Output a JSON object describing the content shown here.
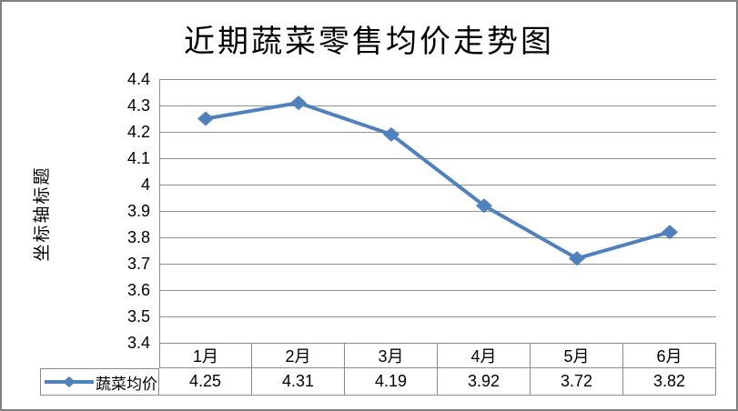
{
  "window": {
    "background": "#ffffff",
    "outer_border_color": "#808080"
  },
  "chart_data": {
    "type": "line",
    "title": "近期蔬菜零售均价走势图",
    "y_axis_title": "坐标轴标题",
    "categories": [
      "1月",
      "2月",
      "3月",
      "4月",
      "5月",
      "6月"
    ],
    "series": [
      {
        "name": "蔬菜均价",
        "values": [
          4.25,
          4.31,
          4.19,
          3.92,
          3.72,
          3.82
        ]
      }
    ],
    "data_table_values": [
      "4.25",
      "4.31",
      "4.19",
      "3.92",
      "3.72",
      "3.82"
    ],
    "ylim": [
      3.4,
      4.4
    ],
    "ytick_step": 0.1,
    "yticks": [
      "4.4",
      "4.3",
      "4.2",
      "4.1",
      "4",
      "3.9",
      "3.8",
      "3.7",
      "3.6",
      "3.5",
      "3.4"
    ],
    "grid": "horizontal-gridlines-on",
    "legend_position": "data-table-left",
    "marker": "diamond",
    "series_color": "#4f81bd",
    "gridline_color": "#8f8f8f",
    "table_border_color": "#8c8c8c",
    "text_color": "#000000"
  }
}
